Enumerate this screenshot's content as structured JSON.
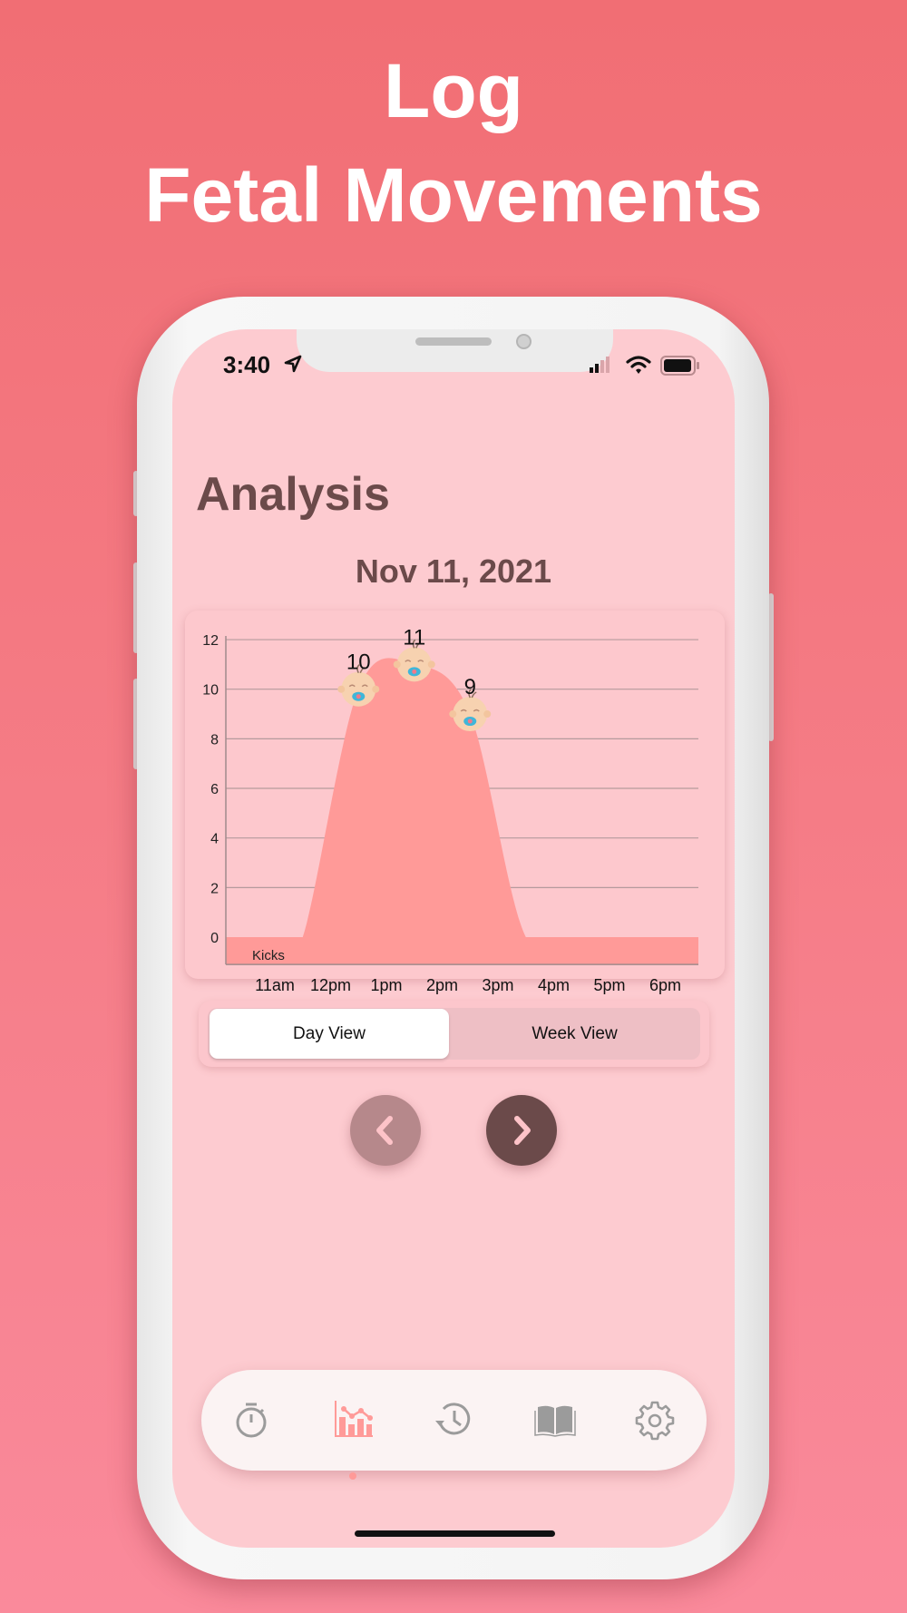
{
  "headline": {
    "line1": "Log",
    "line2": "Fetal Movements"
  },
  "status_bar": {
    "time": "3:40",
    "icons": [
      "location-arrow-icon",
      "signal-icon",
      "wifi-icon",
      "battery-icon"
    ]
  },
  "page": {
    "title": "Analysis",
    "date": "Nov 11, 2021"
  },
  "colors": {
    "accent": "#ff9a98",
    "text": "#6b4a4a",
    "screen_bg": "#fdcbd0",
    "prev_button": "#b6888b",
    "next_button": "#6b4a4a"
  },
  "chart_data": {
    "type": "area",
    "title": "",
    "xlabel": "",
    "ylabel": "",
    "ylim": [
      -1.1,
      12
    ],
    "yticks": [
      0,
      2,
      4,
      6,
      8,
      10,
      12
    ],
    "xticks": [
      "11am",
      "12pm",
      "1pm",
      "2pm",
      "3pm",
      "4pm",
      "5pm",
      "6pm"
    ],
    "grid": true,
    "legend": "bottom-left",
    "series": [
      {
        "name": "Kicks",
        "color": "#ff9a98",
        "points": [
          {
            "time": "10:00am",
            "kicks": 0
          },
          {
            "time": "10:30am",
            "kicks": 0
          },
          {
            "time": "11:00am",
            "kicks": 0
          },
          {
            "time": "11:30am",
            "kicks": 0
          },
          {
            "time": "12:30pm",
            "kicks": 10,
            "label": "10"
          },
          {
            "time": "1:30pm",
            "kicks": 11,
            "label": "11"
          },
          {
            "time": "2:30pm",
            "kicks": 9,
            "label": "9"
          },
          {
            "time": "3:30pm",
            "kicks": 0
          },
          {
            "time": "4:30pm",
            "kicks": 0
          },
          {
            "time": "5:30pm",
            "kicks": 0
          },
          {
            "time": "6:30pm",
            "kicks": 0
          }
        ],
        "marker_icon": "baby-face-icon"
      }
    ]
  },
  "view_toggle": {
    "options": [
      "Day View",
      "Week View"
    ],
    "selected": "Day View"
  },
  "tabbar": {
    "items": [
      {
        "icon": "stopwatch-icon",
        "active": false
      },
      {
        "icon": "chart-icon",
        "active": true
      },
      {
        "icon": "history-icon",
        "active": false
      },
      {
        "icon": "book-icon",
        "active": false
      },
      {
        "icon": "gear-icon",
        "active": false
      }
    ]
  }
}
